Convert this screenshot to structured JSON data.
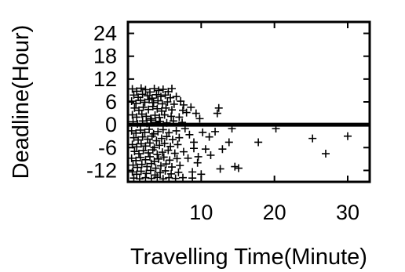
{
  "chart_data": {
    "type": "scatter",
    "title": "",
    "xlabel": "Travelling Time(Minute)",
    "ylabel": "Deadline(Hour)",
    "xlim": [
      0,
      33
    ],
    "ylim": [
      -15,
      27
    ],
    "xticks": [
      10,
      20,
      30
    ],
    "yticks": [
      -12,
      -6,
      0,
      6,
      12,
      18,
      24
    ],
    "grid": false,
    "legend": "none",
    "marker": "plus",
    "color": "#000000",
    "reference_line": {
      "y": 0
    },
    "series": [
      {
        "points": [
          [
            0.6,
            9.4
          ],
          [
            1.2,
            8.8
          ],
          [
            1.8,
            9.6
          ],
          [
            2.4,
            9.2
          ],
          [
            3.0,
            8.6
          ],
          [
            3.6,
            9.5
          ],
          [
            4.2,
            9.0
          ],
          [
            4.8,
            9.3
          ],
          [
            5.5,
            8.7
          ],
          [
            6.0,
            9.5
          ],
          [
            0.8,
            7.8
          ],
          [
            1.4,
            7.2
          ],
          [
            2.0,
            8.0
          ],
          [
            2.7,
            7.6
          ],
          [
            3.3,
            7.0
          ],
          [
            3.9,
            7.9
          ],
          [
            4.5,
            7.4
          ],
          [
            5.1,
            7.8
          ],
          [
            5.8,
            7.1
          ],
          [
            6.6,
            7.4
          ],
          [
            0.5,
            6.2
          ],
          [
            1.1,
            5.6
          ],
          [
            1.7,
            6.4
          ],
          [
            2.3,
            5.9
          ],
          [
            2.9,
            6.6
          ],
          [
            3.5,
            5.8
          ],
          [
            4.1,
            6.3
          ],
          [
            4.7,
            5.5
          ],
          [
            5.4,
            6.0
          ],
          [
            6.3,
            5.4
          ],
          [
            0.9,
            4.4
          ],
          [
            1.5,
            3.8
          ],
          [
            2.1,
            4.6
          ],
          [
            2.8,
            4.0
          ],
          [
            3.4,
            4.8
          ],
          [
            4.0,
            4.2
          ],
          [
            4.6,
            3.6
          ],
          [
            5.2,
            4.4
          ],
          [
            6.0,
            3.9
          ],
          [
            7.5,
            3.8
          ],
          [
            0.6,
            2.6
          ],
          [
            1.2,
            2.0
          ],
          [
            1.9,
            2.8
          ],
          [
            2.5,
            2.2
          ],
          [
            3.1,
            1.6
          ],
          [
            3.7,
            2.5
          ],
          [
            4.3,
            1.9
          ],
          [
            5.0,
            2.6
          ],
          [
            5.9,
            2.2
          ],
          [
            7.0,
            2.0
          ],
          [
            0.7,
            0.8
          ],
          [
            1.3,
            0.2
          ],
          [
            2.0,
            1.0
          ],
          [
            2.6,
            0.4
          ],
          [
            3.2,
            1.2
          ],
          [
            3.8,
            0.6
          ],
          [
            4.4,
            0.9
          ],
          [
            5.3,
            0.5
          ],
          [
            6.2,
            1.0
          ],
          [
            7.4,
            0.6
          ],
          [
            0.5,
            -1.6
          ],
          [
            1.1,
            -2.2
          ],
          [
            1.7,
            -1.4
          ],
          [
            2.3,
            -2.0
          ],
          [
            2.9,
            -1.2
          ],
          [
            3.5,
            -2.4
          ],
          [
            4.1,
            -1.8
          ],
          [
            4.8,
            -1.3
          ],
          [
            5.6,
            -2.1
          ],
          [
            6.6,
            -1.6
          ],
          [
            0.8,
            -3.4
          ],
          [
            1.4,
            -4.0
          ],
          [
            2.0,
            -3.2
          ],
          [
            2.7,
            -3.8
          ],
          [
            3.3,
            -3.0
          ],
          [
            3.9,
            -4.2
          ],
          [
            4.6,
            -3.6
          ],
          [
            5.3,
            -3.1
          ],
          [
            6.1,
            -3.9
          ],
          [
            7.0,
            -3.4
          ],
          [
            0.6,
            -5.2
          ],
          [
            1.2,
            -5.8
          ],
          [
            1.8,
            -5.0
          ],
          [
            2.4,
            -5.6
          ],
          [
            3.0,
            -4.8
          ],
          [
            3.6,
            -6.0
          ],
          [
            4.3,
            -5.4
          ],
          [
            5.0,
            -4.9
          ],
          [
            5.8,
            -5.7
          ],
          [
            6.8,
            -5.2
          ],
          [
            0.9,
            -7.0
          ],
          [
            1.5,
            -7.6
          ],
          [
            2.1,
            -6.8
          ],
          [
            2.8,
            -7.4
          ],
          [
            3.4,
            -6.6
          ],
          [
            4.0,
            -7.8
          ],
          [
            4.7,
            -7.2
          ],
          [
            5.5,
            -6.7
          ],
          [
            6.4,
            -7.5
          ],
          [
            7.6,
            -7.1
          ],
          [
            0.5,
            -8.8
          ],
          [
            1.1,
            -9.4
          ],
          [
            1.7,
            -8.6
          ],
          [
            2.4,
            -9.2
          ],
          [
            3.0,
            -8.4
          ],
          [
            3.6,
            -9.6
          ],
          [
            4.2,
            -9.0
          ],
          [
            4.9,
            -8.5
          ],
          [
            5.7,
            -9.3
          ],
          [
            6.7,
            -8.9
          ],
          [
            0.7,
            -10.6
          ],
          [
            1.3,
            -11.2
          ],
          [
            1.9,
            -10.4
          ],
          [
            2.6,
            -11.0
          ],
          [
            3.2,
            -10.2
          ],
          [
            3.8,
            -11.4
          ],
          [
            4.5,
            -10.8
          ],
          [
            5.2,
            -10.3
          ],
          [
            6.0,
            -11.1
          ],
          [
            7.1,
            -10.7
          ],
          [
            0.6,
            -12.4
          ],
          [
            1.2,
            -13.0
          ],
          [
            1.8,
            -12.2
          ],
          [
            2.5,
            -12.8
          ],
          [
            3.1,
            -12.0
          ],
          [
            3.7,
            -13.2
          ],
          [
            4.4,
            -12.6
          ],
          [
            5.1,
            -12.1
          ],
          [
            5.9,
            -12.9
          ],
          [
            6.9,
            -12.5
          ],
          [
            0.8,
            -14.0
          ],
          [
            1.6,
            -14.2
          ],
          [
            2.4,
            -13.9
          ],
          [
            3.2,
            -14.1
          ],
          [
            4.0,
            -13.8
          ],
          [
            4.8,
            -14.2
          ],
          [
            5.6,
            -13.9
          ],
          [
            6.5,
            -14.1
          ],
          [
            7.5,
            -13.9
          ],
          [
            8.8,
            -14.0
          ],
          [
            7.2,
            6.2
          ],
          [
            7.6,
            5.2
          ],
          [
            8.0,
            3.2
          ],
          [
            8.6,
            4.6
          ],
          [
            9.3,
            3.0
          ],
          [
            9.8,
            1.6
          ],
          [
            7.8,
            -1.0
          ],
          [
            8.4,
            -2.6
          ],
          [
            9.0,
            -4.6
          ],
          [
            10.2,
            -2.0
          ],
          [
            9.0,
            -6.2
          ],
          [
            8.2,
            -8.8
          ],
          [
            9.5,
            -10.0
          ],
          [
            8.8,
            -12.4
          ],
          [
            10.0,
            -13.0
          ],
          [
            9.6,
            -8.4
          ],
          [
            10.6,
            -6.4
          ],
          [
            11.1,
            -3.2
          ],
          [
            11.9,
            -1.8
          ],
          [
            11.3,
            -8.0
          ],
          [
            12.4,
            4.4
          ],
          [
            12.2,
            3.0
          ],
          [
            12.6,
            -11.6
          ],
          [
            12.9,
            -6.4
          ],
          [
            13.8,
            -4.6
          ],
          [
            14.2,
            -1.0
          ],
          [
            14.6,
            -11.0
          ],
          [
            15.1,
            -11.4
          ],
          [
            17.8,
            -4.6
          ],
          [
            20.2,
            -1.0
          ],
          [
            25.2,
            -3.6
          ],
          [
            27.0,
            -7.6
          ],
          [
            30.0,
            -3.0
          ]
        ]
      }
    ]
  }
}
